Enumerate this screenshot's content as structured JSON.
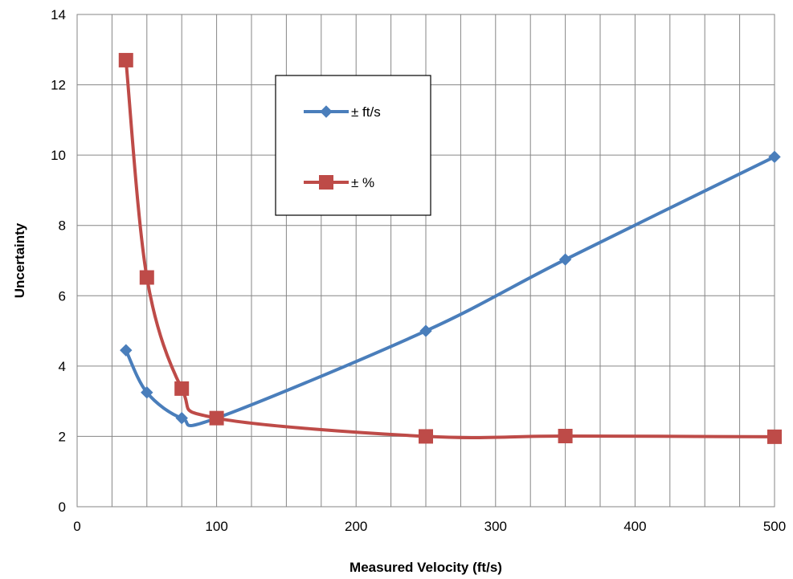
{
  "chart_data": {
    "type": "line",
    "title": "",
    "xlabel": "Measured Velocity (ft/s)",
    "ylabel": "Uncertainty",
    "xlim": [
      0,
      500
    ],
    "ylim": [
      0,
      14
    ],
    "x_ticks": [
      0,
      100,
      200,
      300,
      400,
      500
    ],
    "y_ticks": [
      0,
      2,
      4,
      6,
      8,
      10,
      12,
      14
    ],
    "grid": true,
    "legend_position": "top-center",
    "smooth": true,
    "series": [
      {
        "name": "± ft/s",
        "color": "#4a7ebb",
        "marker": "diamond",
        "x": [
          35,
          50,
          75,
          100,
          250,
          350,
          500
        ],
        "y": [
          4.45,
          3.25,
          2.52,
          2.52,
          5.0,
          7.03,
          9.95
        ]
      },
      {
        "name": "± %",
        "color": "#be4b48",
        "marker": "square",
        "x": [
          35,
          50,
          75,
          100,
          250,
          350,
          500
        ],
        "y": [
          12.7,
          6.52,
          3.36,
          2.52,
          2.0,
          2.01,
          1.99
        ]
      }
    ]
  }
}
